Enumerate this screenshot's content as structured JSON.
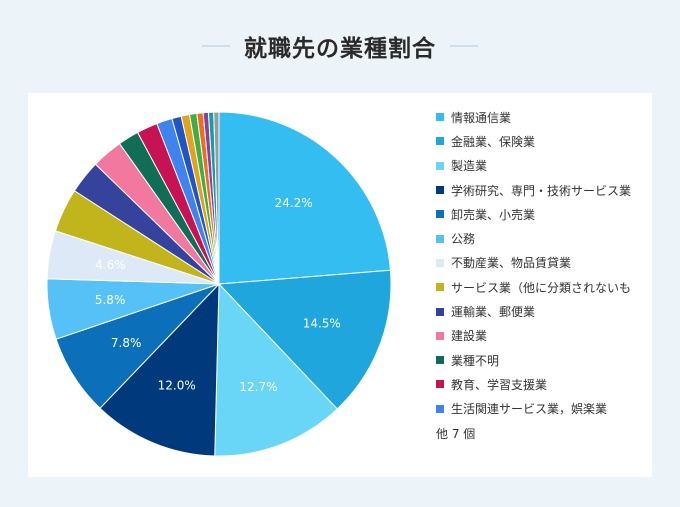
{
  "header": {
    "title": "就職先の業種割合"
  },
  "chart_data": {
    "type": "pie",
    "title": "就職先の業種割合",
    "slices": [
      {
        "label": "情報通信業",
        "value": 24.2,
        "value_label": "24.2%",
        "color": "#33bdf0"
      },
      {
        "label": "金融業、保険業",
        "value": 14.5,
        "value_label": "14.5%",
        "color": "#1ea6dd"
      },
      {
        "label": "製造業",
        "value": 12.7,
        "value_label": "12.7%",
        "color": "#69d5f7"
      },
      {
        "label": "学術研究、専門・技術サービス業",
        "value": 12.0,
        "value_label": "12.0%",
        "color": "#003a7c"
      },
      {
        "label": "卸売業、小売業",
        "value": 7.8,
        "value_label": "7.8%",
        "color": "#0c6fb9"
      },
      {
        "label": "公務",
        "value": 5.8,
        "value_label": "5.8%",
        "color": "#55c1f6"
      },
      {
        "label": "不動産業、物品賃貸業",
        "value": 4.6,
        "value_label": "4.6%",
        "color": "#dde9f7"
      },
      {
        "label": "サービス業（他に分類されないも",
        "value": 4.2,
        "color": "#c2b41b"
      },
      {
        "label": "運輸業、郵便業",
        "value": 3.2,
        "color": "#35439d"
      },
      {
        "label": "建設業",
        "value": 3.0,
        "color": "#f3789f"
      },
      {
        "label": "業種不明",
        "value": 2.0,
        "color": "#0f6e55"
      },
      {
        "label": "教育、学習支援業",
        "value": 2.0,
        "color": "#c71353"
      },
      {
        "label": "生活関連サービス業，娯楽業",
        "value": 1.5,
        "color": "#3f84ee"
      }
    ],
    "other_slices": [
      {
        "value": 0.9,
        "color": "#2255c4"
      },
      {
        "value": 0.8,
        "color": "#e3a21c"
      },
      {
        "value": 0.7,
        "color": "#3fae49"
      },
      {
        "value": 0.6,
        "color": "#ef6d1f"
      },
      {
        "value": 0.5,
        "color": "#8f3ea0"
      },
      {
        "value": 0.5,
        "color": "#13a0a0"
      },
      {
        "value": 0.5,
        "color": "#9a9a9a"
      }
    ],
    "other_label": "他 7 個"
  }
}
